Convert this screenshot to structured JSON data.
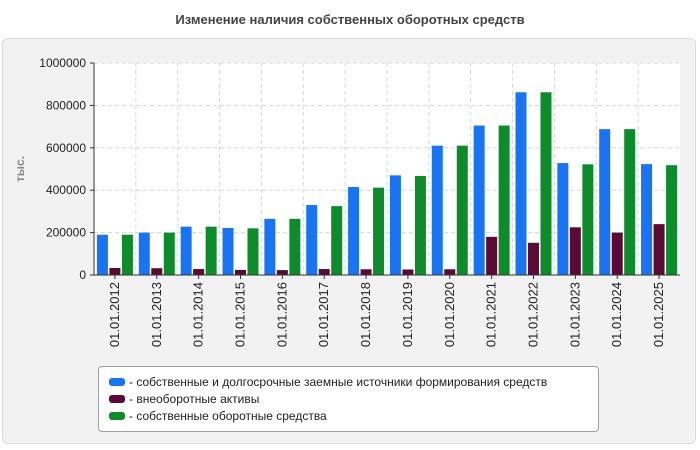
{
  "chart_data": {
    "type": "bar",
    "title": "Изменение наличия собственных оборотных средств",
    "ylabel": "тыс.",
    "xlabel": "",
    "ylim": [
      0,
      1000000
    ],
    "yticks": [
      "0",
      "200000",
      "400000",
      "600000",
      "800000",
      "1000000"
    ],
    "grid": true,
    "legend_position": "bottom",
    "categories": [
      "01.01.2012",
      "01.01.2013",
      "01.01.2014",
      "01.01.2015",
      "01.01.2016",
      "01.01.2017",
      "01.01.2018",
      "01.01.2019",
      "01.01.2020",
      "01.01.2021",
      "01.01.2022",
      "01.01.2023",
      "01.01.2024",
      "01.01.2025"
    ],
    "series": [
      {
        "name": "- собственные и долгосрочные заемные источники формирования средств",
        "color": "#1874f3",
        "values": [
          190000,
          200000,
          228000,
          222000,
          265000,
          330000,
          415000,
          470000,
          610000,
          705000,
          862000,
          528000,
          688000,
          523000
        ]
      },
      {
        "name": "- внеоборотные активы",
        "color": "#5b0a35",
        "values": [
          33000,
          32000,
          28000,
          24000,
          23000,
          28000,
          27000,
          26000,
          27000,
          180000,
          152000,
          225000,
          200000,
          240000
        ]
      },
      {
        "name": "- собственные оборотные средства",
        "color": "#0d8c2c",
        "values": [
          190000,
          200000,
          228000,
          220000,
          265000,
          325000,
          412000,
          467000,
          610000,
          705000,
          862000,
          522000,
          688000,
          518000
        ]
      }
    ]
  }
}
